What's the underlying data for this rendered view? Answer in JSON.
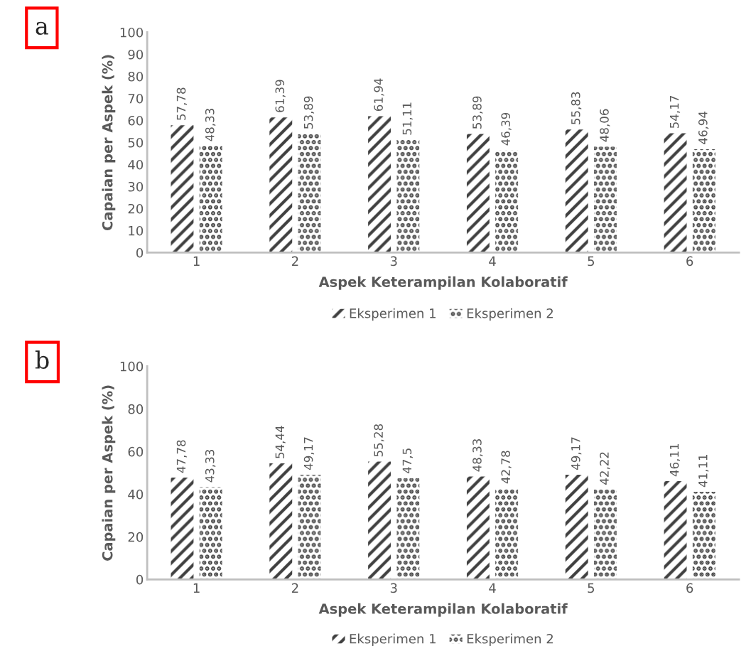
{
  "chart_data": [
    {
      "type": "bar",
      "annotations": [
        "a"
      ],
      "xlabel": "Aspek Keterampilan Kolaboratif",
      "ylabel": "Capaian per Aspek (%)",
      "categories": [
        "1",
        "2",
        "3",
        "4",
        "5",
        "6"
      ],
      "series": [
        {
          "name": "Eksperimen 1",
          "color": "#404040",
          "values": [
            57.78,
            61.39,
            61.94,
            53.89,
            55.83,
            54.17
          ],
          "value_labels": [
            "57,78",
            "61,39",
            "61,94",
            "53,89",
            "55,83",
            "54,17"
          ]
        },
        {
          "name": "Eksperimen 2",
          "color": "#404040",
          "values": [
            48.33,
            53.89,
            51.11,
            46.39,
            48.06,
            46.94
          ],
          "value_labels": [
            "48,33",
            "53,89",
            "51,11",
            "46,39",
            "48,06",
            "46,94"
          ]
        }
      ],
      "ylim": [
        0,
        100
      ],
      "yticks": [
        0,
        10,
        20,
        30,
        40,
        50,
        60,
        70,
        80,
        90,
        100
      ],
      "legend": "bottom",
      "grid": false
    },
    {
      "type": "bar",
      "annotations": [
        "b"
      ],
      "xlabel": "Aspek Keterampilan Kolaboratif",
      "ylabel": "Capaian per Aspek (%)",
      "categories": [
        "1",
        "2",
        "3",
        "4",
        "5",
        "6"
      ],
      "series": [
        {
          "name": "Eksperimen 1",
          "color": "#404040",
          "values": [
            47.78,
            54.44,
            55.28,
            48.33,
            49.17,
            46.11
          ],
          "value_labels": [
            "47,78",
            "54,44",
            "55,28",
            "48,33",
            "49,17",
            "46,11"
          ]
        },
        {
          "name": "Eksperimen 2",
          "color": "#404040",
          "values": [
            43.33,
            49.17,
            47.5,
            42.78,
            42.22,
            41.11
          ],
          "value_labels": [
            "43,33",
            "49,17",
            "47,5",
            "42,78",
            "42,22",
            "41,11"
          ]
        }
      ],
      "ylim": [
        0,
        100
      ],
      "yticks": [
        0,
        20,
        40,
        60,
        80,
        100
      ],
      "legend": "bottom",
      "grid": false
    }
  ]
}
